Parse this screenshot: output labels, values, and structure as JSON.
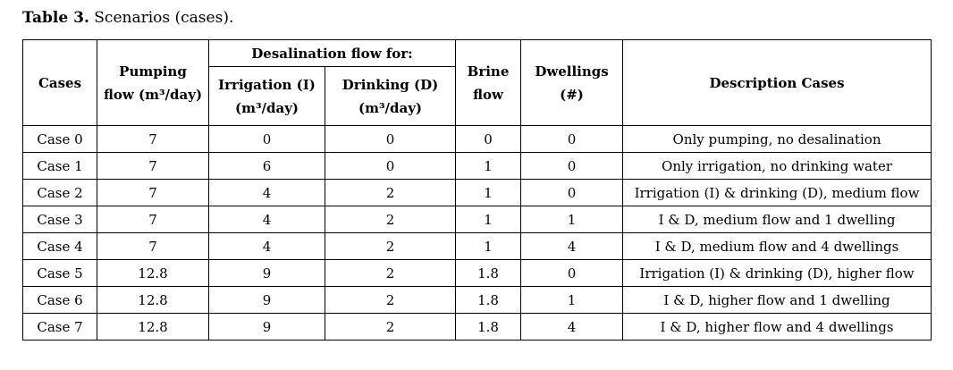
{
  "caption": {
    "label": "Table 3.",
    "text": "Scenarios (cases)."
  },
  "colors": {
    "border": "#000000",
    "text": "#000000",
    "background": "#ffffff"
  },
  "table": {
    "header": {
      "cases": "Cases",
      "pumping": [
        "Pumping",
        "flow (m³/day)"
      ],
      "desalination_group": "Desalination flow for:",
      "irrigation": [
        "Irrigation (I)",
        "(m³/day)"
      ],
      "drinking": [
        "Drinking (D)",
        "(m³/day)"
      ],
      "brine": [
        "Brine",
        "flow"
      ],
      "dwellings": [
        "Dwellings",
        "(#)"
      ],
      "description": "Description Cases"
    },
    "rows": [
      {
        "case": "Case 0",
        "pumping": "7",
        "irrigation": "0",
        "drinking": "0",
        "brine": "0",
        "dwellings": "0",
        "description": "Only pumping, no desalination"
      },
      {
        "case": "Case 1",
        "pumping": "7",
        "irrigation": "6",
        "drinking": "0",
        "brine": "1",
        "dwellings": "0",
        "description": "Only irrigation, no drinking water"
      },
      {
        "case": "Case 2",
        "pumping": "7",
        "irrigation": "4",
        "drinking": "2",
        "brine": "1",
        "dwellings": "0",
        "description": "Irrigation (I) & drinking (D), medium flow"
      },
      {
        "case": "Case 3",
        "pumping": "7",
        "irrigation": "4",
        "drinking": "2",
        "brine": "1",
        "dwellings": "1",
        "description": "I & D, medium flow and 1 dwelling"
      },
      {
        "case": "Case 4",
        "pumping": "7",
        "irrigation": "4",
        "drinking": "2",
        "brine": "1",
        "dwellings": "4",
        "description": "I & D, medium flow and 4 dwellings"
      },
      {
        "case": "Case 5",
        "pumping": "12.8",
        "irrigation": "9",
        "drinking": "2",
        "brine": "1.8",
        "dwellings": "0",
        "description": "Irrigation (I) & drinking (D), higher flow"
      },
      {
        "case": "Case 6",
        "pumping": "12.8",
        "irrigation": "9",
        "drinking": "2",
        "brine": "1.8",
        "dwellings": "1",
        "description": "I & D, higher flow and 1 dwelling"
      },
      {
        "case": "Case 7",
        "pumping": "12.8",
        "irrigation": "9",
        "drinking": "2",
        "brine": "1.8",
        "dwellings": "4",
        "description": "I & D, higher flow and 4 dwellings"
      }
    ]
  }
}
